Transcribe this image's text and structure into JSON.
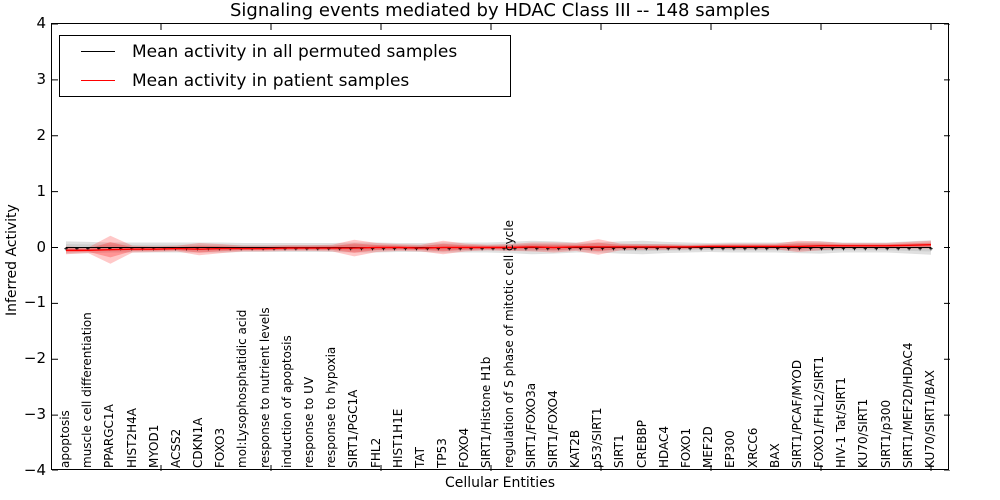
{
  "title": "Signaling events mediated by HDAC Class III -- 148 samples",
  "xlabel": "Cellular Entities",
  "ylabel": "Inferred Activity",
  "legend": {
    "permuted": "Mean activity in all permuted samples",
    "patient": "Mean activity in patient samples"
  },
  "colors": {
    "permuted_line": "#000000",
    "patient_line": "#ff0000",
    "permuted_band": "#999999",
    "patient_band": "#ff2222"
  },
  "y_ticks": [
    "4",
    "3",
    "2",
    "1",
    "0",
    "−1",
    "−2",
    "−3",
    "−4"
  ],
  "chart_data": {
    "type": "line",
    "title": "Signaling events mediated by HDAC Class III -- 148 samples",
    "xlabel": "Cellular Entities",
    "ylabel": "Inferred Activity",
    "ylim": [
      -4,
      4
    ],
    "grid": false,
    "legend_position": "upper left",
    "categories": [
      "apoptosis",
      "muscle cell differentiation",
      "PPARGC1A",
      "HIST2H4A",
      "MYOD1",
      "ACSS2",
      "CDKN1A",
      "FOXO3",
      "mol:Lysophosphatidic acid",
      "response to nutrient levels",
      "induction of apoptosis",
      "response to UV",
      "response to hypoxia",
      "SIRT1/PGC1A",
      "FHL2",
      "HIST1H1E",
      "TAT",
      "TP53",
      "FOXO4",
      "SIRT1/Histone H1b",
      "regulation of S phase of mitotic cell cycle",
      "SIRT1/FOXO3a",
      "SIRT1/FOXO4",
      "KAT2B",
      "p53/SIRT1",
      "SIRT1",
      "CREBBP",
      "HDAC4",
      "FOXO1",
      "MEF2D",
      "EP300",
      "XRCC6",
      "BAX",
      "SIRT1/PCAF/MYOD",
      "FOXO1/FHL2/SIRT1",
      "HIV-1 Tat/SIRT1",
      "KU70/SIRT1",
      "SIRT1/p300",
      "SIRT1/MEF2D/HDAC4",
      "KU70/SIRT1/BAX"
    ],
    "series": [
      {
        "name": "Mean activity in all permuted samples",
        "color": "#000000",
        "values": [
          0,
          0,
          0,
          0,
          0,
          0,
          0,
          0,
          0,
          0,
          0,
          0,
          0,
          0,
          0,
          0,
          0,
          0,
          0,
          0,
          0,
          0,
          0,
          0,
          0,
          0,
          0,
          0,
          0,
          0,
          0,
          0,
          0,
          0,
          0,
          0,
          0,
          0,
          0,
          0
        ],
        "band_halfwidth": [
          0.11,
          0.1,
          0.09,
          0.09,
          0.09,
          0.09,
          0.09,
          0.09,
          0.08,
          0.08,
          0.08,
          0.08,
          0.08,
          0.09,
          0.09,
          0.08,
          0.08,
          0.09,
          0.09,
          0.09,
          0.1,
          0.12,
          0.11,
          0.09,
          0.09,
          0.11,
          0.12,
          0.1,
          0.09,
          0.08,
          0.09,
          0.09,
          0.09,
          0.1,
          0.11,
          0.09,
          0.09,
          0.09,
          0.11,
          0.13
        ]
      },
      {
        "name": "Mean activity in patient samples",
        "color": "#ff0000",
        "values": [
          -0.05,
          -0.05,
          -0.04,
          -0.03,
          -0.03,
          -0.02,
          -0.03,
          -0.02,
          -0.02,
          -0.02,
          -0.01,
          -0.01,
          -0.01,
          -0.01,
          0,
          0,
          -0.01,
          0,
          0,
          0,
          0,
          0.01,
          0,
          0.01,
          0.01,
          0.01,
          0.01,
          0.01,
          0.01,
          0.02,
          0.02,
          0.02,
          0.02,
          0.02,
          0.03,
          0.03,
          0.03,
          0.03,
          0.04,
          0.05
        ],
        "band_halfwidth": [
          0.07,
          0.05,
          0.25,
          0.06,
          0.05,
          0.05,
          0.11,
          0.08,
          0.05,
          0.05,
          0.05,
          0.05,
          0.06,
          0.15,
          0.08,
          0.06,
          0.06,
          0.12,
          0.07,
          0.05,
          0.06,
          0.08,
          0.09,
          0.07,
          0.14,
          0.06,
          0.05,
          0.05,
          0.04,
          0.04,
          0.05,
          0.05,
          0.05,
          0.1,
          0.08,
          0.05,
          0.05,
          0.05,
          0.06,
          0.07
        ]
      }
    ]
  }
}
